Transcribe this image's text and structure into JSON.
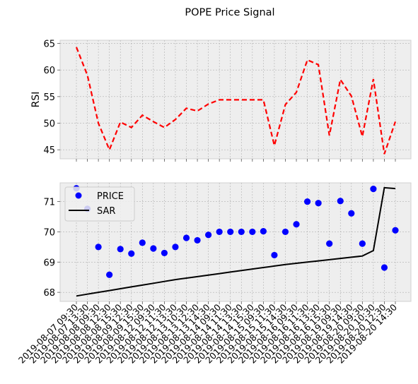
{
  "chart_data": [
    {
      "type": "line",
      "title": "POPE Price Signal",
      "ylabel": "RSI",
      "ylim": [
        43.3,
        65.6
      ],
      "yticks": [
        45,
        50,
        55,
        60,
        65
      ],
      "x_labels": [
        "2019-08-07 09:30",
        "2019-08-07 13:30",
        "2019-08-08 09:30",
        "2019-08-08 12:30",
        "2019-08-08 15:30",
        "2019-08-09 12:30",
        "2019-08-09 15:30",
        "2019-08-12 09:30",
        "2019-08-12 11:30",
        "2019-08-12 13:30",
        "2019-08-13 10:30",
        "2019-08-13 12:30",
        "2019-08-13 14:30",
        "2019-08-14 09:30",
        "2019-08-14 11:30",
        "2019-08-14 13:30",
        "2019-08-14 15:30",
        "2019-08-15 09:30",
        "2019-08-15 11:30",
        "2019-08-15 14:30",
        "2019-08-16 09:30",
        "2019-08-16 11:30",
        "2019-08-16 13:30",
        "2019-08-16 15:30",
        "2019-08-19 09:30",
        "2019-08-19 14:30",
        "2019-08-20 09:30",
        "2019-08-20 10:30",
        "2019-08-20 12:30",
        "2019-08-20 14:30"
      ],
      "series": [
        {
          "name": "RSI",
          "color": "#ff0000",
          "values": [
            64.3,
            59.0,
            50.0,
            45.0,
            50.2,
            49.2,
            51.5,
            50.3,
            49.2,
            50.7,
            52.8,
            52.3,
            53.6,
            54.4,
            54.4,
            54.4,
            54.4,
            54.4,
            45.8,
            53.5,
            55.8,
            61.9,
            61.0,
            47.7,
            58.2,
            55.1,
            47.5,
            58.3,
            44.2,
            50.3
          ]
        }
      ]
    },
    {
      "type": "line",
      "title": "",
      "ylabel": "",
      "ylim": [
        67.7,
        71.62
      ],
      "yticks": [
        68,
        69,
        70,
        71
      ],
      "legend": "top-left",
      "series": [
        {
          "name": "PRICE",
          "color": "#0000ff",
          "style": "points",
          "values": [
            71.44,
            70.76,
            69.5,
            68.58,
            69.43,
            69.28,
            69.64,
            69.45,
            69.3,
            69.5,
            69.8,
            69.72,
            69.9,
            70.0,
            70.0,
            70.0,
            70.0,
            70.02,
            69.23,
            70.0,
            70.25,
            71.0,
            70.95,
            69.61,
            71.02,
            70.61,
            69.61,
            71.42,
            68.82,
            70.05
          ]
        },
        {
          "name": "SAR",
          "color": "#000000",
          "style": "line",
          "values": [
            67.88,
            67.94,
            68.0,
            68.06,
            68.12,
            68.18,
            68.24,
            68.3,
            68.36,
            68.42,
            68.47,
            68.52,
            68.57,
            68.62,
            68.67,
            68.72,
            68.77,
            68.82,
            68.87,
            68.92,
            68.96,
            69.0,
            69.04,
            69.08,
            69.12,
            69.16,
            69.2,
            69.38,
            71.46,
            71.43
          ]
        }
      ]
    }
  ]
}
